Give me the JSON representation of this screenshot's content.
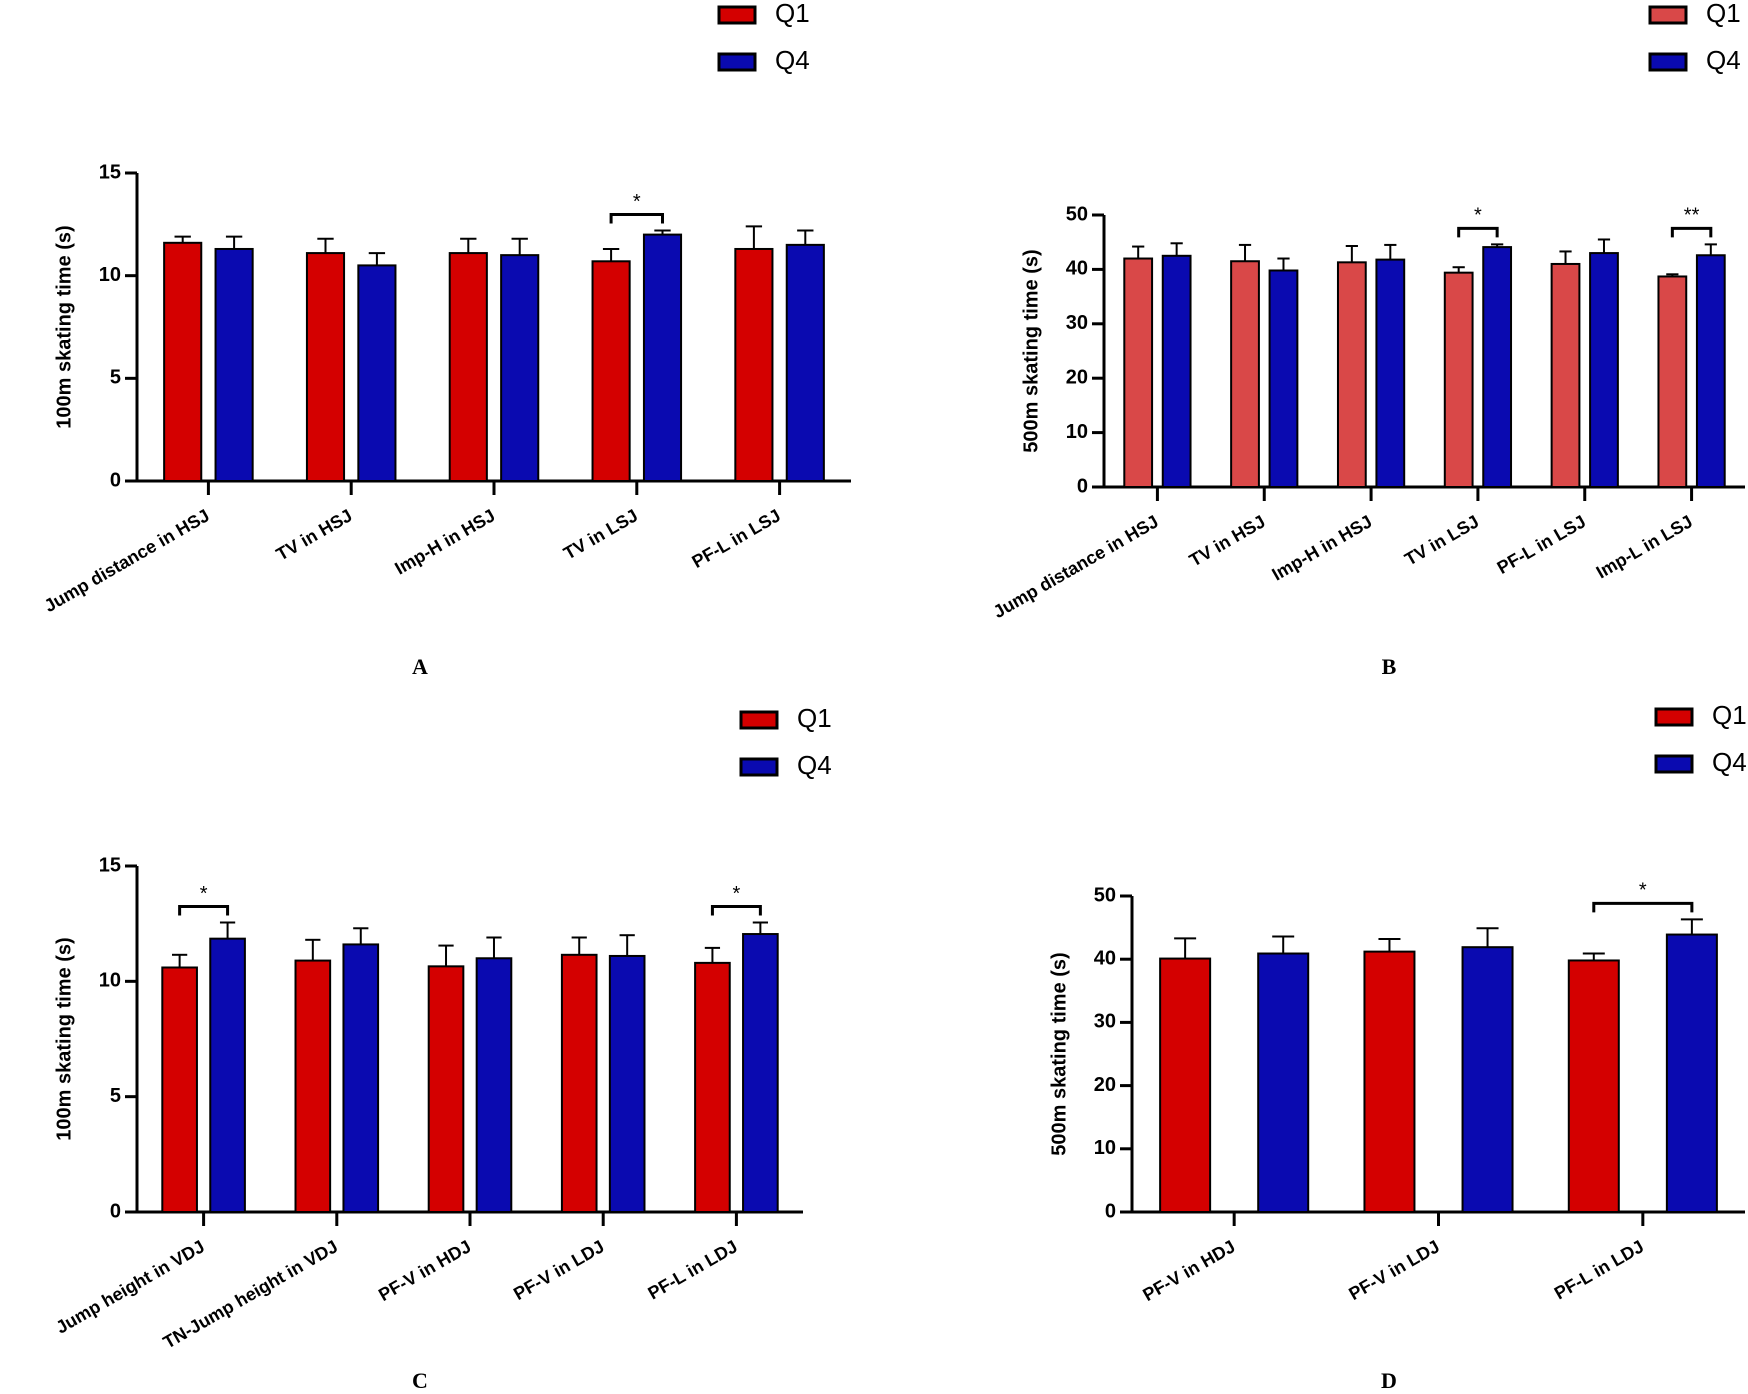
{
  "chart_data": [
    {
      "type": "bar",
      "panel": "A",
      "ylabel": "100m skating time (s)",
      "categories": [
        "Jump distance in HSJ",
        "TV in HSJ",
        "Imp-H in HSJ",
        "TV in LSJ",
        "PF-L in LSJ"
      ],
      "series": [
        {
          "name": "Q1",
          "color": "#d40000",
          "values": [
            11.6,
            11.1,
            11.1,
            10.7,
            11.3
          ],
          "errors": [
            0.3,
            0.7,
            0.7,
            0.6,
            1.1
          ]
        },
        {
          "name": "Q4",
          "color": "#0a0ab0",
          "values": [
            11.3,
            10.5,
            11.0,
            12.0,
            11.5
          ],
          "errors": [
            0.6,
            0.6,
            0.8,
            0.2,
            0.7
          ]
        }
      ],
      "ylim": [
        0,
        15
      ],
      "yticks": [
        0,
        5,
        10,
        15
      ],
      "significance": [
        {
          "text": "*",
          "category": "TV in LSJ"
        }
      ]
    },
    {
      "type": "bar",
      "panel": "B",
      "ylabel": "500m skating time (s)",
      "categories": [
        "Jump distance in HSJ",
        "TV in HSJ",
        "Imp-H in HSJ",
        "TV in LSJ",
        "PF-L in LSJ",
        "Imp-L in LSJ"
      ],
      "series": [
        {
          "name": "Q1",
          "color": "#d94848",
          "values": [
            42.0,
            41.5,
            41.3,
            39.4,
            41.0,
            38.7
          ],
          "errors": [
            2.2,
            3.0,
            3.0,
            1.0,
            2.3,
            0.4
          ]
        },
        {
          "name": "Q4",
          "color": "#0a0ab0",
          "values": [
            42.5,
            39.8,
            41.8,
            44.1,
            43.0,
            42.6
          ],
          "errors": [
            2.3,
            2.2,
            2.7,
            0.5,
            2.5,
            2.0
          ]
        }
      ],
      "ylim": [
        0,
        50
      ],
      "yticks": [
        0,
        10,
        20,
        30,
        40,
        50
      ],
      "significance": [
        {
          "text": "*",
          "category": "TV in LSJ"
        },
        {
          "text": "**",
          "category": "Imp-L in LSJ"
        }
      ]
    },
    {
      "type": "bar",
      "panel": "C",
      "ylabel": "100m skating time (s)",
      "categories": [
        "Jump height in VDJ",
        "TN-Jump height in VDJ",
        "PF-V in HDJ",
        "PF-V in LDJ",
        "PF-L in LDJ"
      ],
      "series": [
        {
          "name": "Q1",
          "color": "#d40000",
          "values": [
            10.6,
            10.9,
            10.65,
            11.15,
            10.8
          ],
          "errors": [
            0.55,
            0.9,
            0.9,
            0.75,
            0.65
          ]
        },
        {
          "name": "Q4",
          "color": "#0a0ab0",
          "values": [
            11.85,
            11.6,
            11.0,
            11.1,
            12.05
          ],
          "errors": [
            0.7,
            0.7,
            0.9,
            0.9,
            0.5
          ]
        }
      ],
      "ylim": [
        0,
        15
      ],
      "yticks": [
        0,
        5,
        10,
        15
      ],
      "significance": [
        {
          "text": "*",
          "category": "Jump height in VDJ"
        },
        {
          "text": "*",
          "category": "PF-L in LDJ"
        }
      ]
    },
    {
      "type": "bar",
      "panel": "D",
      "ylabel": "500m skating time (s)",
      "categories": [
        "PF-V in HDJ",
        "PF-V in LDJ",
        "PF-L in LDJ"
      ],
      "series": [
        {
          "name": "Q1",
          "color": "#d40000",
          "values": [
            40.1,
            41.2,
            39.8
          ],
          "errors": [
            3.2,
            2.0,
            1.1
          ]
        },
        {
          "name": "Q4",
          "color": "#0a0ab0",
          "values": [
            40.9,
            41.9,
            43.9
          ],
          "errors": [
            2.7,
            3.0,
            2.4
          ]
        }
      ],
      "ylim": [
        0,
        50
      ],
      "yticks": [
        0,
        10,
        20,
        30,
        40,
        50
      ],
      "significance": [
        {
          "text": "*",
          "category": "PF-L in LDJ"
        }
      ]
    }
  ]
}
